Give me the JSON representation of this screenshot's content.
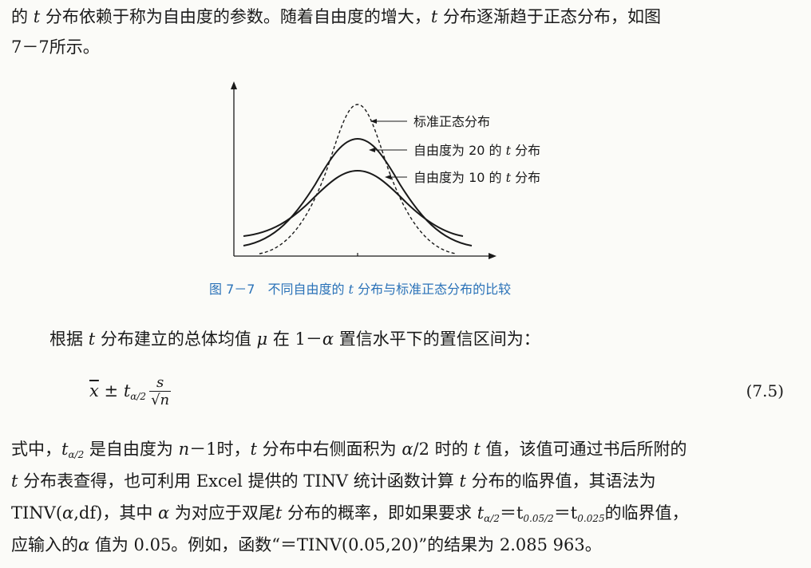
{
  "intro": {
    "line1_a": "的",
    "line1_t": "t",
    "line1_b": "分布依赖于称为自由度的参数。随着自由度的增大，",
    "line1_t2": "t",
    "line1_c": "分布逐渐趋于正态分布，如图",
    "line2": "7－7所示。"
  },
  "figure": {
    "labels": [
      "标准正态分布",
      "自由度为 20 的",
      "自由度为 10 的"
    ],
    "label_t": "t",
    "label_suffix": "分布",
    "caption_prefix": "图 7－7　不同自由度的",
    "caption_t": "t",
    "caption_suffix": "分布与标准正态分布的比较"
  },
  "para1": {
    "a": "根据",
    "t": "t",
    "b": "分布建立的总体均值",
    "mu": "μ",
    "c": "在 1－",
    "alpha": "α",
    "d": "置信水平下的置信区间为："
  },
  "equation": {
    "xbar": "x",
    "pm": "±",
    "t": "t",
    "sub": "α/2",
    "num": "s",
    "den": "√n",
    "number": "(7.5)"
  },
  "para2": {
    "l1a": "式中，",
    "l1t": "t",
    "l1sub": "α/2",
    "l1b": "是自由度为",
    "l1n": "n",
    "l1c": "－1时，",
    "l1t2": "t",
    "l1d": "分布中右侧面积为",
    "l1alpha": "α",
    "l1e": "/2 时的",
    "l1t3": "t",
    "l1f": "值，该值可通过书后所附的",
    "l2t": "t",
    "l2a": "分布表查得，也可利用 Excel 提供的 TINV 统计函数计算",
    "l2t2": "t",
    "l2b": "分布的临界值，其语法为",
    "l3a": "TINV(",
    "l3alpha": "α",
    "l3b": ",df)，其中",
    "l3alpha2": "α",
    "l3c": "为对应于双尾",
    "l3t": "t",
    "l3d": "分布的概率，即如果要求",
    "l3e": "t",
    "l3sub1": "α/2",
    "l3f": "＝t",
    "l3sub2": "0.05/2",
    "l3g": "＝t",
    "l3sub3": "0.025",
    "l3h": "的临界值，",
    "l4a": "应输入的",
    "l4alpha": "α",
    "l4b": "值为 0.05。例如，函数“＝TINV(0.05,20)”的结果为 2.085 963。"
  }
}
